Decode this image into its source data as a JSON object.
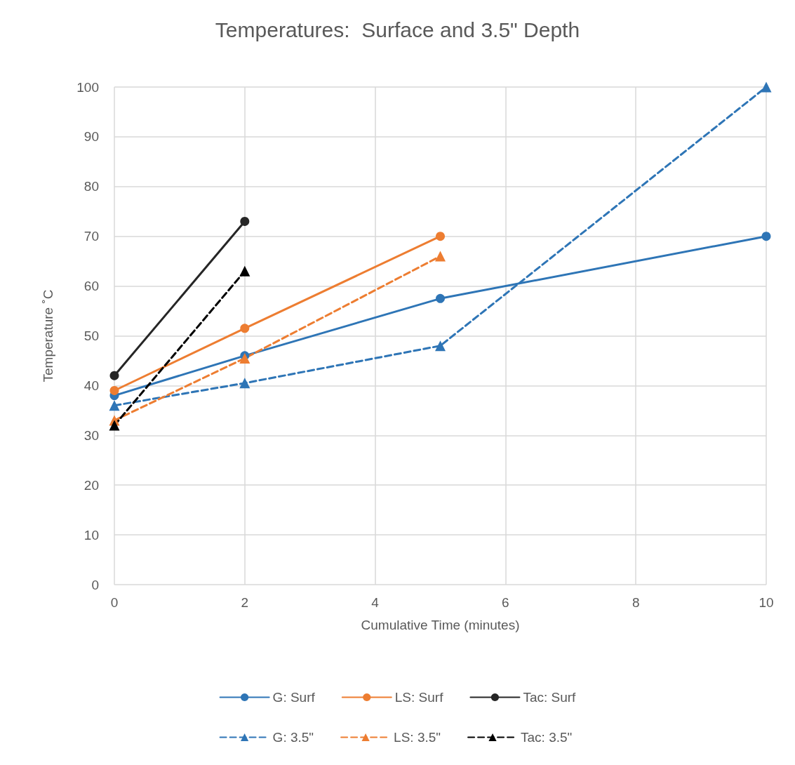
{
  "chart_data": {
    "type": "line",
    "title": "Temperatures:  Surface and 3.5\" Depth",
    "xlabel": "Cumulative Time (minutes)",
    "ylabel": "Temperature ˚C",
    "xlim": [
      0,
      10
    ],
    "xticks": [
      0,
      2,
      4,
      6,
      8,
      10
    ],
    "ylim": [
      0,
      100
    ],
    "yticks": [
      0,
      10,
      20,
      30,
      40,
      50,
      60,
      70,
      80,
      90,
      100
    ],
    "grid": true,
    "legend": "bottom",
    "series": [
      {
        "name": "G: Surf",
        "color": "#2e75b6",
        "marker": "circle",
        "line_style": "solid",
        "x": [
          0,
          2,
          5,
          10
        ],
        "values": [
          38,
          46,
          57.5,
          70
        ]
      },
      {
        "name": "LS: Surf",
        "color": "#ed7d31",
        "marker": "circle",
        "line_style": "solid",
        "x": [
          0,
          2,
          5
        ],
        "values": [
          39,
          51.5,
          70
        ]
      },
      {
        "name": "Tac: Surf",
        "color": "#262626",
        "marker": "circle",
        "line_style": "solid",
        "x": [
          0,
          2
        ],
        "values": [
          42,
          73
        ]
      },
      {
        "name": "G: 3.5\"",
        "color": "#2e75b6",
        "marker": "triangle",
        "line_style": "dashed",
        "x": [
          0,
          2,
          5,
          10
        ],
        "values": [
          36,
          40.5,
          48,
          100
        ]
      },
      {
        "name": "LS: 3.5\"",
        "color": "#ed7d31",
        "marker": "triangle",
        "line_style": "dashed",
        "x": [
          0,
          2,
          5
        ],
        "values": [
          33,
          45.5,
          66
        ]
      },
      {
        "name": "Tac: 3.5\"",
        "color": "#000000",
        "marker": "triangle",
        "line_style": "dashed",
        "x": [
          0,
          2
        ],
        "values": [
          32,
          63
        ]
      }
    ]
  }
}
